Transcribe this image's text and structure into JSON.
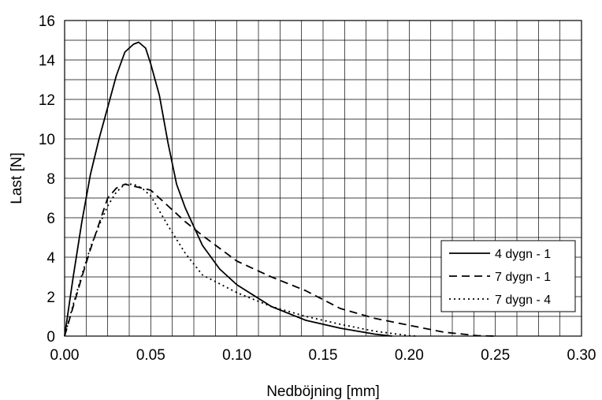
{
  "chart_data": {
    "type": "line",
    "title": "",
    "xlabel": "Nedböjning [mm]",
    "ylabel": "Last [N]",
    "xlim": [
      0,
      0.3
    ],
    "ylim": [
      0,
      16
    ],
    "x_ticks": [
      0,
      0.05,
      0.1,
      0.15,
      0.2,
      0.25,
      0.3
    ],
    "x_tick_labels": [
      "0.00",
      "0.05",
      "0.10",
      "0.15",
      "0.20",
      "0.25",
      "0.30"
    ],
    "y_ticks": [
      0,
      2,
      4,
      6,
      8,
      10,
      12,
      14,
      16
    ],
    "y_tick_labels": [
      "0",
      "2",
      "4",
      "6",
      "8",
      "10",
      "12",
      "14",
      "16"
    ],
    "grid": true,
    "grid_x_step": 0.0125,
    "grid_y_step": 1,
    "legend_position": "right",
    "series": [
      {
        "name": "4 dygn - 1",
        "style": "solid",
        "color": "#000000",
        "points": [
          [
            0,
            0
          ],
          [
            0.005,
            3.0
          ],
          [
            0.01,
            5.8
          ],
          [
            0.015,
            8.2
          ],
          [
            0.02,
            10.0
          ],
          [
            0.025,
            11.6
          ],
          [
            0.03,
            13.2
          ],
          [
            0.035,
            14.4
          ],
          [
            0.04,
            14.8
          ],
          [
            0.043,
            14.9
          ],
          [
            0.047,
            14.6
          ],
          [
            0.05,
            13.8
          ],
          [
            0.055,
            12.2
          ],
          [
            0.06,
            9.8
          ],
          [
            0.065,
            7.7
          ],
          [
            0.07,
            6.5
          ],
          [
            0.08,
            4.6
          ],
          [
            0.09,
            3.4
          ],
          [
            0.1,
            2.6
          ],
          [
            0.12,
            1.5
          ],
          [
            0.14,
            0.8
          ],
          [
            0.16,
            0.4
          ],
          [
            0.18,
            0.1
          ],
          [
            0.19,
            0
          ]
        ]
      },
      {
        "name": "7 dygn - 1",
        "style": "dashed",
        "color": "#000000",
        "points": [
          [
            0,
            0
          ],
          [
            0.005,
            1.5
          ],
          [
            0.01,
            3.0
          ],
          [
            0.015,
            4.4
          ],
          [
            0.02,
            5.7
          ],
          [
            0.025,
            7.0
          ],
          [
            0.03,
            7.5
          ],
          [
            0.035,
            7.7
          ],
          [
            0.04,
            7.6
          ],
          [
            0.045,
            7.5
          ],
          [
            0.05,
            7.4
          ],
          [
            0.06,
            6.6
          ],
          [
            0.07,
            5.8
          ],
          [
            0.08,
            5.1
          ],
          [
            0.1,
            3.8
          ],
          [
            0.12,
            3.0
          ],
          [
            0.14,
            2.3
          ],
          [
            0.16,
            1.4
          ],
          [
            0.18,
            0.9
          ],
          [
            0.2,
            0.55
          ],
          [
            0.22,
            0.2
          ],
          [
            0.24,
            0.02
          ],
          [
            0.25,
            0
          ]
        ]
      },
      {
        "name": "7 dygn - 4",
        "style": "dotted",
        "color": "#000000",
        "points": [
          [
            0,
            0
          ],
          [
            0.005,
            1.6
          ],
          [
            0.01,
            3.1
          ],
          [
            0.015,
            4.5
          ],
          [
            0.02,
            5.6
          ],
          [
            0.025,
            6.6
          ],
          [
            0.03,
            7.3
          ],
          [
            0.035,
            7.7
          ],
          [
            0.04,
            7.7
          ],
          [
            0.045,
            7.5
          ],
          [
            0.05,
            7.1
          ],
          [
            0.06,
            5.6
          ],
          [
            0.07,
            4.2
          ],
          [
            0.08,
            3.1
          ],
          [
            0.1,
            2.2
          ],
          [
            0.12,
            1.5
          ],
          [
            0.14,
            1.0
          ],
          [
            0.16,
            0.6
          ],
          [
            0.18,
            0.25
          ],
          [
            0.2,
            0.02
          ],
          [
            0.205,
            0
          ]
        ]
      }
    ]
  }
}
